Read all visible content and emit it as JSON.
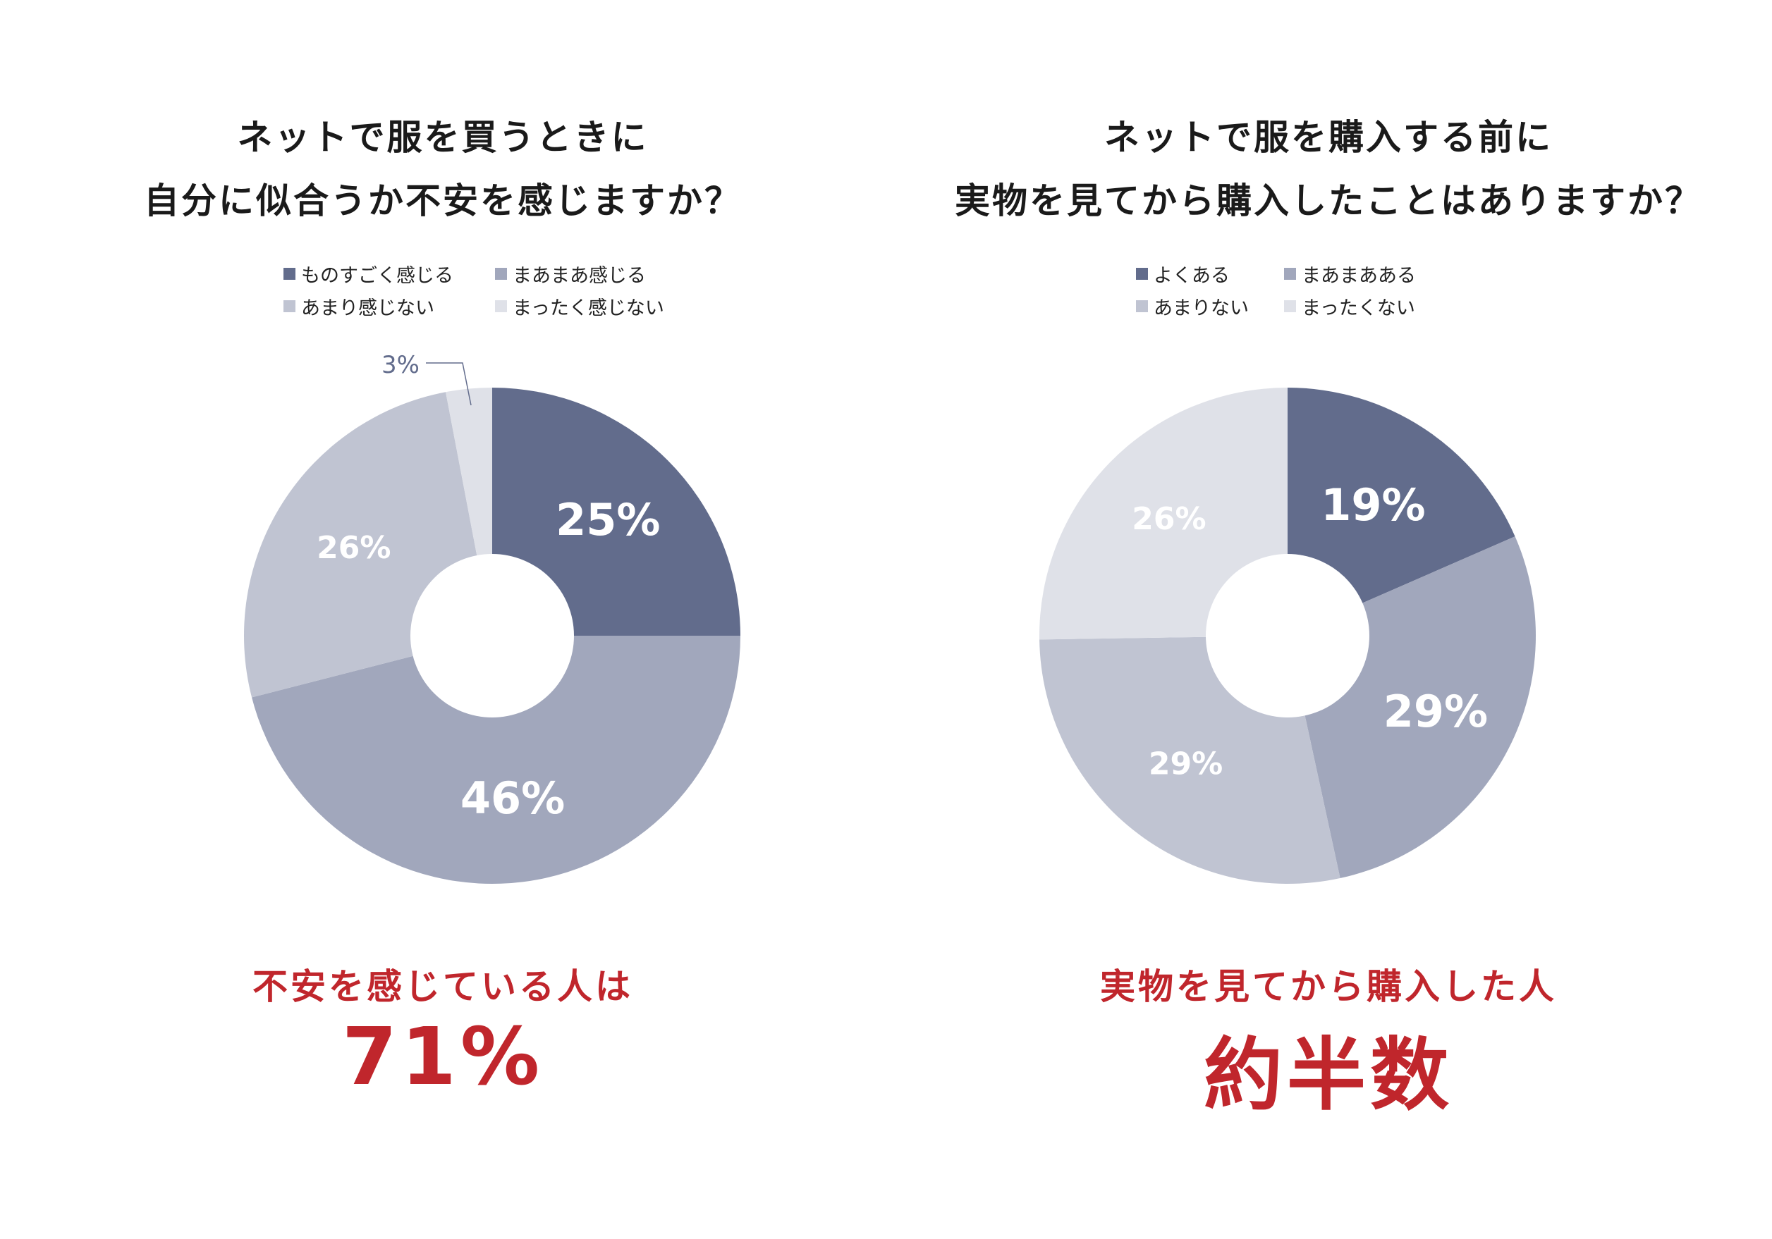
{
  "colors": {
    "background": "#ffffff",
    "title": "#1a1a1a",
    "accent_red": "#c0262c",
    "series": [
      "#626c8c",
      "#a1a7bc",
      "#c0c4d2",
      "#dfe1e8"
    ]
  },
  "chart_data": [
    {
      "type": "pie",
      "donut": true,
      "title": [
        "ネットで服を買うときに",
        "自分に似合うか不安を感じますか？"
      ],
      "categories": [
        "ものすごく感じる",
        "まあまあ感じる",
        "あまり感じない",
        "まったく感じない"
      ],
      "values": [
        25,
        46,
        26,
        3
      ],
      "value_labels": [
        "25%",
        "46%",
        "26%",
        "3%"
      ],
      "legend_position": "top"
    },
    {
      "type": "pie",
      "donut": true,
      "title": [
        "ネットで服を購入する前に",
        "実物を見てから購入したことはありますか？"
      ],
      "categories": [
        "よくある",
        "まあまあある",
        "あまりない",
        "まったくない"
      ],
      "values": [
        19,
        29,
        29,
        26
      ],
      "value_labels": [
        "19%",
        "29%",
        "29%",
        "26%"
      ],
      "legend_position": "top"
    }
  ],
  "conclusions": [
    {
      "caption": "不安を感じている人は",
      "value": "71%"
    },
    {
      "caption": "実物を見てから購入した人",
      "value": "約半数"
    }
  ]
}
